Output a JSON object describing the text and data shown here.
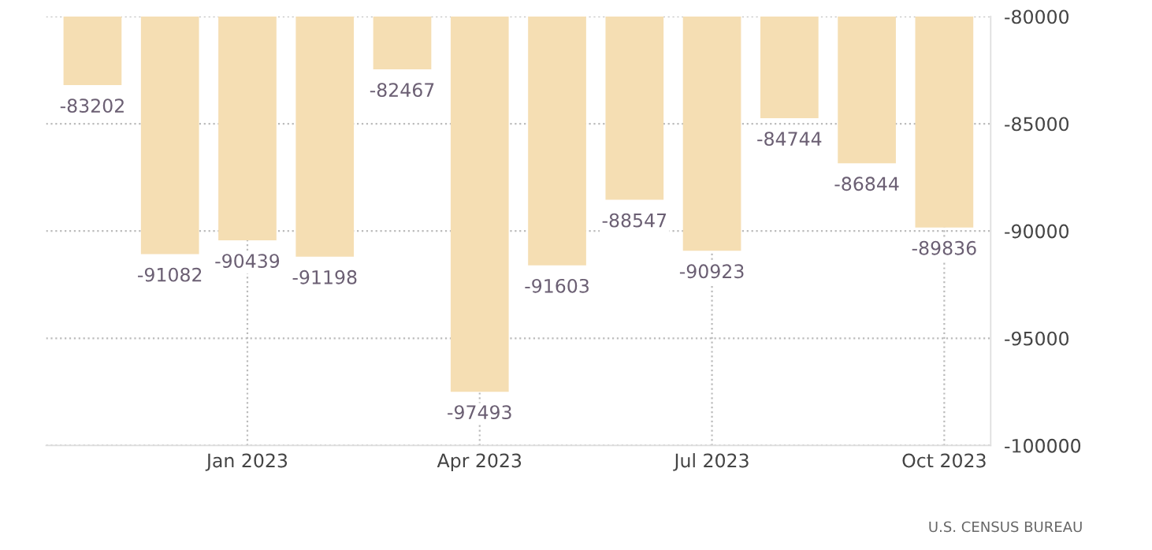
{
  "chart_data": {
    "type": "bar",
    "categories": [
      null,
      null,
      "Jan 2023",
      null,
      null,
      "Apr 2023",
      null,
      null,
      "Jul 2023",
      null,
      null,
      "Oct 2023"
    ],
    "values": [
      -83202,
      -91082,
      -90439,
      -91198,
      -82467,
      -97493,
      -91603,
      -88547,
      -90923,
      -84744,
      -86844,
      -89836
    ],
    "color": "#f5deb3",
    "data_labels": true,
    "ylim": [
      -100000,
      -80000
    ],
    "yticks": [
      -100000,
      -95000,
      -90000,
      -85000,
      -80000
    ],
    "grid": true,
    "legend": false,
    "annotations": [
      "U.S. CENSUS BUREAU"
    ]
  }
}
